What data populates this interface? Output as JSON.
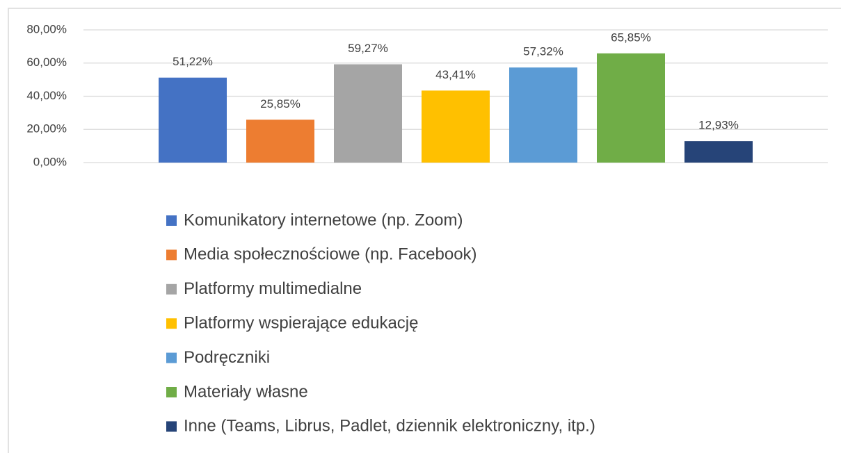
{
  "chart_data": {
    "type": "bar",
    "series": [
      {
        "name": "Komunikatory internetowe (np. Zoom)",
        "color": "#4472c4",
        "values": [
          51.22
        ],
        "value_labels": [
          "51,22%"
        ]
      },
      {
        "name": "Media społecznościowe (np. Facebook)",
        "color": "#ed7d31",
        "values": [
          25.85
        ],
        "value_labels": [
          "25,85%"
        ]
      },
      {
        "name": "Platformy multimedialne",
        "color": "#a5a5a5",
        "values": [
          59.27
        ],
        "value_labels": [
          "59,27%"
        ]
      },
      {
        "name": "Platformy wspierające edukację",
        "color": "#ffc000",
        "values": [
          43.41
        ],
        "value_labels": [
          "43,41%"
        ]
      },
      {
        "name": "Podręczniki",
        "color": "#5b9bd5",
        "values": [
          57.32
        ],
        "value_labels": [
          "57,32%"
        ]
      },
      {
        "name": "Materiały własne",
        "color": "#70ad47",
        "values": [
          65.85
        ],
        "value_labels": [
          "65,85%"
        ]
      },
      {
        "name": "Inne (Teams, Librus, Padlet, dziennik elektroniczny, itp.)",
        "color": "#264478",
        "values": [
          12.93
        ],
        "value_labels": [
          "12,93%"
        ]
      }
    ],
    "ylim": [
      0,
      80
    ],
    "yticks": [
      {
        "value": 0,
        "label": "0,00%"
      },
      {
        "value": 20,
        "label": "20,00%"
      },
      {
        "value": 40,
        "label": "40,00%"
      },
      {
        "value": 60,
        "label": "60,00%"
      },
      {
        "value": 80,
        "label": "80,00%"
      }
    ],
    "grid": true
  }
}
